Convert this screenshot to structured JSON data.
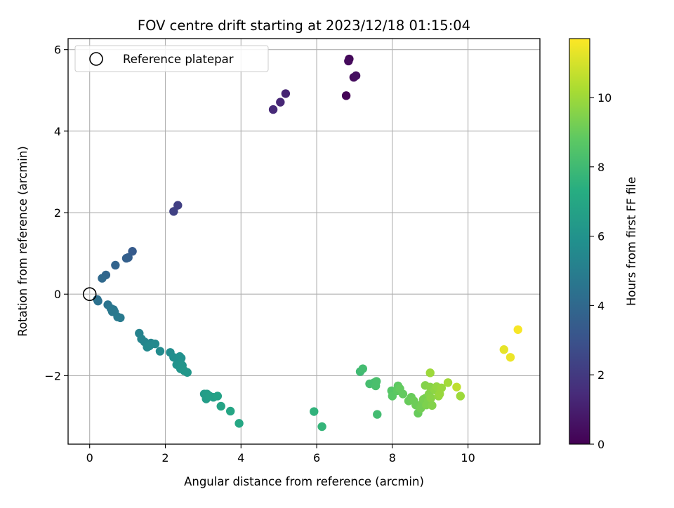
{
  "chart_data": {
    "type": "scatter",
    "title": "FOV centre drift starting at 2023/12/18 01:15:04",
    "xlabel": "Angular distance from reference (arcmin)",
    "ylabel": "Rotation from reference (arcmin)",
    "xlim": [
      -0.57,
      11.9
    ],
    "ylim": [
      -3.68,
      6.27
    ],
    "xticks": [
      0,
      2,
      4,
      6,
      8,
      10
    ],
    "yticks": [
      -2,
      0,
      2,
      4,
      6
    ],
    "grid": true,
    "legend": {
      "placement": "top-left",
      "entries": [
        "Reference platepar"
      ]
    },
    "reference_point": {
      "x": 0,
      "y": 0,
      "style": "open-circle",
      "color": "#000000"
    },
    "colorbar": {
      "label": "Hours from first FF file",
      "colormap": "viridis",
      "range": [
        0,
        11.7
      ],
      "ticks": [
        0,
        2,
        4,
        6,
        8,
        10
      ]
    },
    "points": [
      {
        "x": 6.78,
        "y": 4.87,
        "c": 0.1
      },
      {
        "x": 6.86,
        "y": 5.77,
        "c": 0.2
      },
      {
        "x": 6.84,
        "y": 5.72,
        "c": 0.3
      },
      {
        "x": 6.98,
        "y": 5.32,
        "c": 0.4
      },
      {
        "x": 7.04,
        "y": 5.36,
        "c": 0.5
      },
      {
        "x": 5.18,
        "y": 4.92,
        "c": 1.2
      },
      {
        "x": 5.04,
        "y": 4.71,
        "c": 1.3
      },
      {
        "x": 4.85,
        "y": 4.53,
        "c": 1.4
      },
      {
        "x": 2.33,
        "y": 2.18,
        "c": 2.2
      },
      {
        "x": 2.22,
        "y": 2.03,
        "c": 2.3
      },
      {
        "x": 1.13,
        "y": 1.05,
        "c": 3.4
      },
      {
        "x": 1.02,
        "y": 0.9,
        "c": 3.5
      },
      {
        "x": 0.97,
        "y": 0.88,
        "c": 3.6
      },
      {
        "x": 0.68,
        "y": 0.71,
        "c": 3.8
      },
      {
        "x": 0.43,
        "y": 0.47,
        "c": 3.9
      },
      {
        "x": 0.33,
        "y": 0.39,
        "c": 4.0
      },
      {
        "x": 0.2,
        "y": -0.13,
        "c": 4.3
      },
      {
        "x": 0.22,
        "y": -0.17,
        "c": 4.4
      },
      {
        "x": 0.48,
        "y": -0.26,
        "c": 4.5
      },
      {
        "x": 0.56,
        "y": -0.35,
        "c": 4.6
      },
      {
        "x": 0.63,
        "y": -0.38,
        "c": 4.6
      },
      {
        "x": 0.6,
        "y": -0.43,
        "c": 4.7
      },
      {
        "x": 0.66,
        "y": -0.44,
        "c": 4.7
      },
      {
        "x": 0.74,
        "y": -0.56,
        "c": 4.8
      },
      {
        "x": 0.81,
        "y": -0.58,
        "c": 4.8
      },
      {
        "x": 1.31,
        "y": -0.96,
        "c": 5.2
      },
      {
        "x": 1.37,
        "y": -1.1,
        "c": 5.3
      },
      {
        "x": 1.45,
        "y": -1.17,
        "c": 5.3
      },
      {
        "x": 1.55,
        "y": -1.22,
        "c": 5.4
      },
      {
        "x": 1.62,
        "y": -1.2,
        "c": 5.4
      },
      {
        "x": 1.52,
        "y": -1.3,
        "c": 5.5
      },
      {
        "x": 1.58,
        "y": -1.27,
        "c": 5.5
      },
      {
        "x": 1.73,
        "y": -1.22,
        "c": 5.5
      },
      {
        "x": 1.86,
        "y": -1.4,
        "c": 5.6
      },
      {
        "x": 2.13,
        "y": -1.43,
        "c": 5.7
      },
      {
        "x": 2.22,
        "y": -1.55,
        "c": 5.8
      },
      {
        "x": 2.3,
        "y": -1.58,
        "c": 5.8
      },
      {
        "x": 2.38,
        "y": -1.53,
        "c": 5.9
      },
      {
        "x": 2.42,
        "y": -1.57,
        "c": 5.9
      },
      {
        "x": 2.3,
        "y": -1.73,
        "c": 6.0
      },
      {
        "x": 2.4,
        "y": -1.7,
        "c": 6.0
      },
      {
        "x": 2.45,
        "y": -1.75,
        "c": 6.1
      },
      {
        "x": 2.4,
        "y": -1.83,
        "c": 6.1
      },
      {
        "x": 2.5,
        "y": -1.88,
        "c": 6.2
      },
      {
        "x": 2.58,
        "y": -1.92,
        "c": 6.2
      },
      {
        "x": 3.03,
        "y": -2.45,
        "c": 6.4
      },
      {
        "x": 3.1,
        "y": -2.45,
        "c": 6.5
      },
      {
        "x": 3.08,
        "y": -2.57,
        "c": 6.5
      },
      {
        "x": 3.17,
        "y": -2.5,
        "c": 6.6
      },
      {
        "x": 3.27,
        "y": -2.53,
        "c": 6.6
      },
      {
        "x": 3.38,
        "y": -2.5,
        "c": 6.7
      },
      {
        "x": 3.47,
        "y": -2.75,
        "c": 6.8
      },
      {
        "x": 3.72,
        "y": -2.87,
        "c": 6.9
      },
      {
        "x": 3.95,
        "y": -3.17,
        "c": 7.0
      },
      {
        "x": 5.93,
        "y": -2.88,
        "c": 7.6
      },
      {
        "x": 6.14,
        "y": -3.25,
        "c": 7.7
      },
      {
        "x": 7.15,
        "y": -1.9,
        "c": 8.0
      },
      {
        "x": 7.22,
        "y": -1.83,
        "c": 8.1
      },
      {
        "x": 7.4,
        "y": -2.2,
        "c": 8.2
      },
      {
        "x": 7.52,
        "y": -2.17,
        "c": 8.2
      },
      {
        "x": 7.56,
        "y": -2.25,
        "c": 8.3
      },
      {
        "x": 7.58,
        "y": -2.14,
        "c": 8.3
      },
      {
        "x": 7.6,
        "y": -2.95,
        "c": 8.1
      },
      {
        "x": 7.98,
        "y": -2.37,
        "c": 8.6
      },
      {
        "x": 8.0,
        "y": -2.5,
        "c": 8.7
      },
      {
        "x": 8.13,
        "y": -2.37,
        "c": 8.8
      },
      {
        "x": 8.15,
        "y": -2.25,
        "c": 8.8
      },
      {
        "x": 8.2,
        "y": -2.32,
        "c": 8.9
      },
      {
        "x": 8.28,
        "y": -2.45,
        "c": 8.9
      },
      {
        "x": 8.43,
        "y": -2.62,
        "c": 9.0
      },
      {
        "x": 8.5,
        "y": -2.53,
        "c": 9.0
      },
      {
        "x": 8.57,
        "y": -2.62,
        "c": 9.1
      },
      {
        "x": 8.62,
        "y": -2.72,
        "c": 9.1
      },
      {
        "x": 8.68,
        "y": -2.92,
        "c": 9.0
      },
      {
        "x": 8.75,
        "y": -2.8,
        "c": 9.2
      },
      {
        "x": 8.78,
        "y": -2.7,
        "c": 9.2
      },
      {
        "x": 8.82,
        "y": -2.58,
        "c": 9.3
      },
      {
        "x": 8.88,
        "y": -2.55,
        "c": 9.3
      },
      {
        "x": 8.9,
        "y": -2.72,
        "c": 9.4
      },
      {
        "x": 8.95,
        "y": -2.62,
        "c": 9.4
      },
      {
        "x": 8.97,
        "y": -2.45,
        "c": 9.5
      },
      {
        "x": 8.87,
        "y": -2.24,
        "c": 9.5
      },
      {
        "x": 9.0,
        "y": -2.28,
        "c": 9.6
      },
      {
        "x": 9.02,
        "y": -2.55,
        "c": 9.6
      },
      {
        "x": 9.05,
        "y": -2.73,
        "c": 9.5
      },
      {
        "x": 9.12,
        "y": -2.35,
        "c": 9.7
      },
      {
        "x": 9.17,
        "y": -2.27,
        "c": 9.8
      },
      {
        "x": 9.22,
        "y": -2.5,
        "c": 9.8
      },
      {
        "x": 9.25,
        "y": -2.45,
        "c": 9.9
      },
      {
        "x": 9.3,
        "y": -2.3,
        "c": 9.9
      },
      {
        "x": 9.0,
        "y": -1.93,
        "c": 10.0
      },
      {
        "x": 9.47,
        "y": -2.17,
        "c": 10.1
      },
      {
        "x": 9.7,
        "y": -2.28,
        "c": 10.6
      },
      {
        "x": 9.8,
        "y": -2.5,
        "c": 10.0
      },
      {
        "x": 10.95,
        "y": -1.36,
        "c": 11.3
      },
      {
        "x": 11.12,
        "y": -1.55,
        "c": 11.4
      },
      {
        "x": 11.32,
        "y": -0.87,
        "c": 11.6
      }
    ]
  }
}
